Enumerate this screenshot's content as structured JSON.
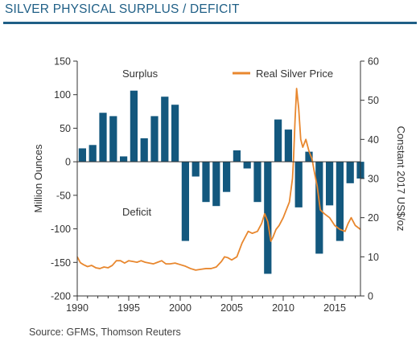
{
  "title": "SILVER PHYSICAL SURPLUS / DEFICIT",
  "source": "Source: GFMS, Thomson Reuters",
  "chart_data": {
    "type": "bar",
    "colors": {
      "bars": "#13587e",
      "line": "#e8872e",
      "title": "#1f5f86"
    },
    "ylabel": "Million Ounces",
    "y2label": "Constant 2017 US$/oz",
    "ylim": [
      -200,
      150
    ],
    "y2lim": [
      0,
      60
    ],
    "xlim": [
      1990,
      2017.5
    ],
    "yticks": [
      150,
      100,
      50,
      0,
      -50,
      -100,
      -150,
      -200
    ],
    "y2ticks": [
      60,
      50,
      40,
      30,
      20,
      10,
      0
    ],
    "xticks": [
      1990,
      1995,
      2000,
      2005,
      2010,
      2015
    ],
    "annotations": {
      "surplus": "Surplus",
      "deficit": "Deficit"
    },
    "legend": {
      "label": "Real Silver Price",
      "position": "top-right"
    },
    "bars": {
      "x": [
        1990,
        1991,
        1992,
        1993,
        1994,
        1995,
        1996,
        1997,
        1998,
        1999,
        2000,
        2001,
        2002,
        2003,
        2004,
        2005,
        2006,
        2007,
        2008,
        2009,
        2010,
        2011,
        2012,
        2013,
        2014,
        2015,
        2016,
        2017
      ],
      "values": [
        20,
        25,
        73,
        68,
        8,
        106,
        35,
        68,
        97,
        85,
        -118,
        -22,
        -60,
        -66,
        -45,
        17,
        -10,
        -60,
        -167,
        63,
        48,
        -68,
        15,
        -137,
        -65,
        -118,
        -32,
        -25
      ]
    },
    "price_series": {
      "name": "Real Silver Price",
      "x": [
        1990,
        1990.3,
        1990.6,
        1991,
        1991.4,
        1991.8,
        1992.2,
        1992.6,
        1993,
        1993.4,
        1993.8,
        1994.2,
        1994.6,
        1995,
        1995.4,
        1995.8,
        1996.2,
        1996.6,
        1997,
        1997.4,
        1997.8,
        1998.2,
        1998.6,
        1999,
        1999.5,
        2000,
        2000.5,
        2001,
        2001.5,
        2002,
        2002.5,
        2003,
        2003.5,
        2004,
        2004.3,
        2004.6,
        2005,
        2005.5,
        2006,
        2006.3,
        2006.6,
        2007,
        2007.5,
        2007.9,
        2008.2,
        2008.5,
        2008.8,
        2009,
        2009.3,
        2009.6,
        2010,
        2010.3,
        2010.6,
        2010.9,
        2011,
        2011.15,
        2011.3,
        2011.5,
        2011.7,
        2011.9,
        2012.2,
        2012.5,
        2012.8,
        2013,
        2013.3,
        2013.6,
        2014,
        2014.5,
        2015,
        2015.5,
        2016,
        2016.3,
        2016.6,
        2017,
        2017.5
      ],
      "values": [
        10,
        8.5,
        8,
        7.5,
        7.8,
        7.2,
        7,
        7.4,
        7.2,
        7.8,
        9,
        9,
        8.4,
        9,
        8.8,
        8.6,
        9,
        8.6,
        8.4,
        8.2,
        8.6,
        9,
        8.2,
        8.2,
        8.4,
        8,
        7.6,
        7,
        6.6,
        6.8,
        7,
        7,
        7.4,
        8.8,
        10,
        9.8,
        9.2,
        10,
        13.5,
        15,
        16.5,
        16,
        16.5,
        18.5,
        21,
        19,
        14,
        15,
        17,
        18,
        20,
        22,
        24,
        30,
        35,
        45,
        53,
        48,
        40,
        38,
        40,
        37,
        35,
        32,
        28,
        22,
        21,
        20,
        18,
        17,
        16.5,
        18.5,
        20,
        18,
        17
      ]
    }
  }
}
